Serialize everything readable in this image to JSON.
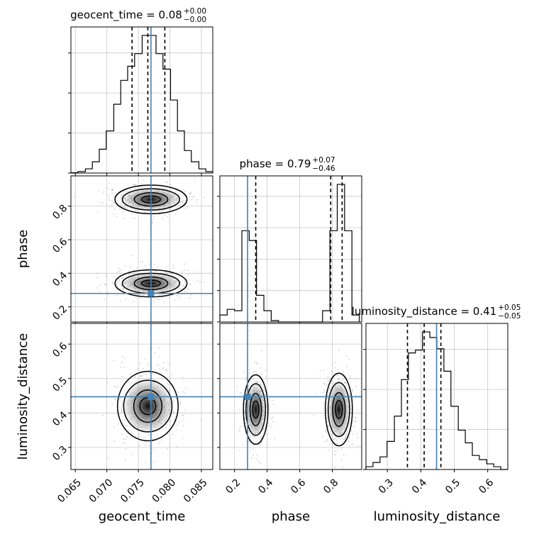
{
  "chart_data": {
    "type": "corner",
    "parameters": [
      "geocent_time",
      "phase",
      "luminosity_distance"
    ],
    "ranges": {
      "geocent_time": [
        0.0643,
        0.0868
      ],
      "phase": [
        0.11,
        0.98
      ],
      "luminosity_distance": [
        0.236,
        0.66
      ]
    },
    "ticks": {
      "geocent_time": [
        "0.065",
        "0.070",
        "0.075",
        "0.080",
        "0.085"
      ],
      "phase": [
        "0.2",
        "0.4",
        "0.6",
        "0.8"
      ],
      "luminosity_distance": [
        "0.3",
        "0.4",
        "0.5",
        "0.6"
      ]
    },
    "diag_ticks": {
      "geocent_time": [
        "",
        "",
        "",
        ""
      ],
      "phase": [
        "",
        "",
        "",
        "",
        ""
      ],
      "luminosity_distance": [
        "",
        "",
        "",
        ""
      ]
    },
    "titles": [
      {
        "param": "geocent_time",
        "label": "geocent_time = 0.08",
        "sup": "+0.00",
        "sub": "−0.00"
      },
      {
        "param": "phase",
        "label": "phase = 0.79",
        "sup": "+0.07",
        "sub": "−0.46"
      },
      {
        "param": "luminosity_distance",
        "label": "luminosity_distance = 0.41",
        "sup": "+0.05",
        "sub": "−0.05"
      }
    ],
    "truths": {
      "geocent_time": 0.077,
      "phase": 0.28,
      "luminosity_distance": 0.447
    },
    "quantiles": {
      "geocent_time": [
        0.074,
        0.0765,
        0.0792
      ],
      "phase": [
        0.33,
        0.79,
        0.86
      ],
      "luminosity_distance": [
        0.36,
        0.41,
        0.46
      ]
    },
    "histograms": {
      "geocent_time": {
        "edges": [
          0.0643,
          0.0654,
          0.0666,
          0.0677,
          0.0688,
          0.0699,
          0.0711,
          0.0722,
          0.0733,
          0.0744,
          0.0756,
          0.0767,
          0.0778,
          0.0789,
          0.0801,
          0.0812,
          0.0823,
          0.0834,
          0.0846,
          0.0857,
          0.0868
        ],
        "counts": [
          0.002,
          0.01,
          0.03,
          0.08,
          0.17,
          0.3,
          0.49,
          0.66,
          0.76,
          0.85,
          0.98,
          0.98,
          0.85,
          0.74,
          0.52,
          0.3,
          0.16,
          0.08,
          0.03,
          0.01
        ]
      },
      "phase": {
        "edges": [
          0.11,
          0.155,
          0.2,
          0.245,
          0.29,
          0.335,
          0.38,
          0.425,
          0.47,
          0.515,
          0.56,
          0.605,
          0.65,
          0.695,
          0.74,
          0.785,
          0.83,
          0.875,
          0.92,
          0.965
        ],
        "counts": [
          0.05,
          0.09,
          0.08,
          0.65,
          0.58,
          0.19,
          0.08,
          0.01,
          0.0,
          0.0,
          0.0,
          0.0,
          0.0,
          0.0,
          0.08,
          0.65,
          0.98,
          0.65,
          0.05
        ]
      },
      "luminosity_distance": {
        "edges": [
          0.236,
          0.257,
          0.278,
          0.299,
          0.321,
          0.342,
          0.363,
          0.384,
          0.405,
          0.427,
          0.448,
          0.469,
          0.49,
          0.512,
          0.533,
          0.554,
          0.575,
          0.597,
          0.618,
          0.639,
          0.66
        ],
        "counts": [
          0.02,
          0.05,
          0.09,
          0.2,
          0.38,
          0.64,
          0.83,
          0.85,
          0.98,
          0.94,
          0.86,
          0.7,
          0.45,
          0.28,
          0.19,
          0.1,
          0.07,
          0.04,
          0.02,
          0.0
        ]
      }
    },
    "blobs": [
      {
        "x": "geocent_time",
        "y": "phase",
        "cx": 0.077,
        "cy": 0.84,
        "rx": 0.0038,
        "ry": 0.055
      },
      {
        "x": "geocent_time",
        "y": "phase",
        "cx": 0.077,
        "cy": 0.34,
        "rx": 0.0038,
        "ry": 0.052
      },
      {
        "x": "geocent_time",
        "y": "luminosity_distance",
        "cx": 0.0765,
        "cy": 0.42,
        "rx": 0.0032,
        "ry": 0.065
      },
      {
        "x": "phase",
        "y": "luminosity_distance",
        "cx": 0.33,
        "cy": 0.41,
        "rx": 0.05,
        "ry": 0.065
      },
      {
        "x": "phase",
        "y": "luminosity_distance",
        "cx": 0.84,
        "cy": 0.41,
        "rx": 0.055,
        "ry": 0.068
      }
    ]
  }
}
